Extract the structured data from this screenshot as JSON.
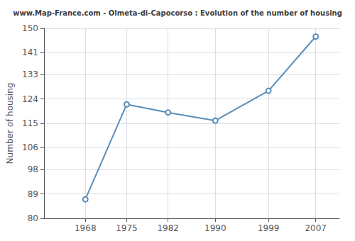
{
  "chart_data": {
    "type": "line",
    "title": "www.Map-France.com - Olmeta-di-Capocorso : Evolution of the number of housing",
    "ylabel": "Number of housing",
    "x": [
      1968,
      1975,
      1982,
      1990,
      1999,
      2007
    ],
    "values": [
      87,
      122,
      119,
      116,
      127,
      147
    ],
    "xlim": [
      1961,
      2011
    ],
    "xticks": [
      1968,
      1975,
      1982,
      1990,
      1999,
      2007
    ],
    "ylim": [
      80,
      150
    ],
    "yticks": [
      80,
      89,
      98,
      106,
      115,
      124,
      133,
      141,
      150
    ],
    "color": "#5b8db8",
    "marker": "circle",
    "grid": true
  }
}
